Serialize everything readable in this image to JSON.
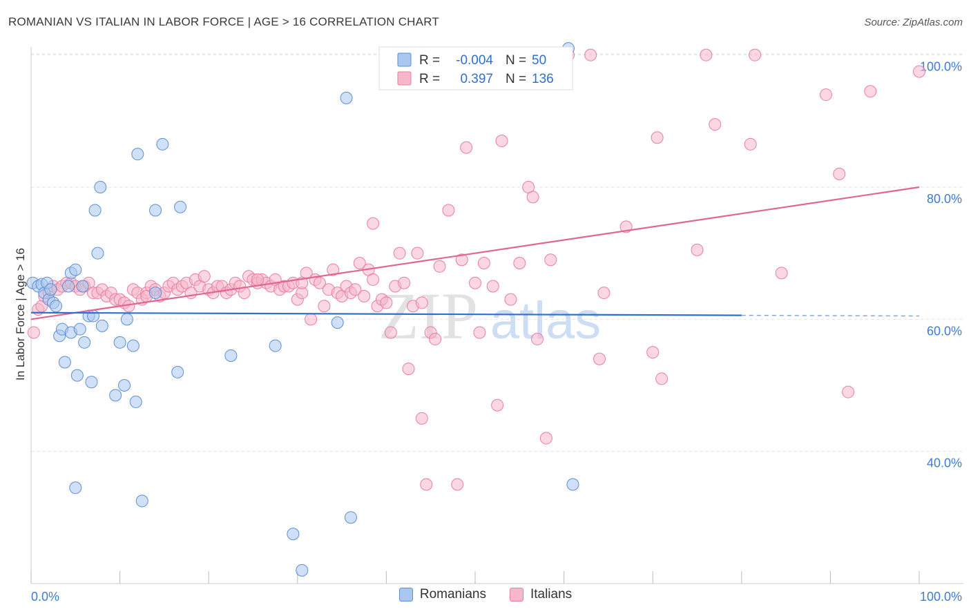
{
  "title": "ROMANIAN VS ITALIAN IN LABOR FORCE | AGE > 16 CORRELATION CHART",
  "source": "Source: ZipAtlas.com",
  "colors": {
    "romanians_fill": "#a9c7ef",
    "romanians_stroke": "#5b8fd6",
    "romanians_line": "#2e6fd0",
    "italians_fill": "#f6b7cb",
    "italians_stroke": "#e87fa1",
    "italians_line": "#e0668f",
    "tick_label": "#3f7bd1"
  },
  "legend_box": {
    "rows": [
      {
        "r_label": "R =",
        "r_value": "-0.004",
        "n_label": "N =",
        "n_value": "50"
      },
      {
        "r_label": "R =",
        "r_value": "0.397",
        "n_label": "N =",
        "n_value": "136"
      }
    ]
  },
  "chart_data": {
    "type": "scatter",
    "ylabel": "In Labor Force | Age > 16",
    "xlabel": "",
    "xlim": [
      0,
      100
    ],
    "ylim": [
      20,
      102
    ],
    "x_tick_labels": [
      "0.0%",
      "100.0%"
    ],
    "y_ticks": [
      40,
      60,
      80,
      100
    ],
    "y_tick_labels": [
      "40.0%",
      "60.0%",
      "80.0%",
      "100.0%"
    ],
    "grid": "horizontal dashed",
    "watermark": "ZIPatlas",
    "series": [
      {
        "name": "Romanians",
        "trend": {
          "x": [
            0,
            80
          ],
          "y": [
            61.0,
            60.6
          ],
          "dashed_to": 100
        },
        "points": [
          [
            0.2,
            65.5
          ],
          [
            0.8,
            65.0
          ],
          [
            1.2,
            65.3
          ],
          [
            1.5,
            64.0
          ],
          [
            1.8,
            65.5
          ],
          [
            2.0,
            63.0
          ],
          [
            2.2,
            64.5
          ],
          [
            2.5,
            62.5
          ],
          [
            2.8,
            62.0
          ],
          [
            3.2,
            57.5
          ],
          [
            3.5,
            58.5
          ],
          [
            3.8,
            53.5
          ],
          [
            4.2,
            65.0
          ],
          [
            4.5,
            67.0
          ],
          [
            4.5,
            58.0
          ],
          [
            5.0,
            67.5
          ],
          [
            5.2,
            51.5
          ],
          [
            5.5,
            58.5
          ],
          [
            5.8,
            65.0
          ],
          [
            6.0,
            56.5
          ],
          [
            6.5,
            60.5
          ],
          [
            6.8,
            50.5
          ],
          [
            7.0,
            60.5
          ],
          [
            7.2,
            76.5
          ],
          [
            7.5,
            70.0
          ],
          [
            7.8,
            80.0
          ],
          [
            8.0,
            59.0
          ],
          [
            9.5,
            48.5
          ],
          [
            10.0,
            56.5
          ],
          [
            10.5,
            50.0
          ],
          [
            10.8,
            60.0
          ],
          [
            11.5,
            56.0
          ],
          [
            11.8,
            47.5
          ],
          [
            12.0,
            85.0
          ],
          [
            12.5,
            32.5
          ],
          [
            14.0,
            64.0
          ],
          [
            14.0,
            76.5
          ],
          [
            14.8,
            86.5
          ],
          [
            16.5,
            52.0
          ],
          [
            16.8,
            77.0
          ],
          [
            22.5,
            54.5
          ],
          [
            27.5,
            56.0
          ],
          [
            29.5,
            27.5
          ],
          [
            35.5,
            93.5
          ],
          [
            5.0,
            34.5
          ],
          [
            36.0,
            30.0
          ],
          [
            60.5,
            101.0
          ],
          [
            30.5,
            22.0
          ],
          [
            34.5,
            59.5
          ],
          [
            61.0,
            35.0
          ]
        ]
      },
      {
        "name": "Italians",
        "trend": {
          "x": [
            0,
            100
          ],
          "y": [
            60.0,
            80.0
          ]
        },
        "points": [
          [
            0.3,
            58.0
          ],
          [
            0.8,
            61.5
          ],
          [
            1.2,
            62.0
          ],
          [
            1.5,
            63.5
          ],
          [
            2.0,
            64.0
          ],
          [
            2.5,
            65.0
          ],
          [
            3.0,
            64.5
          ],
          [
            3.5,
            65.0
          ],
          [
            4.0,
            65.5
          ],
          [
            4.5,
            65.5
          ],
          [
            5.0,
            65.0
          ],
          [
            5.5,
            64.5
          ],
          [
            6.0,
            65.0
          ],
          [
            6.5,
            65.5
          ],
          [
            7.0,
            64.0
          ],
          [
            7.5,
            64.0
          ],
          [
            8.0,
            64.5
          ],
          [
            8.5,
            63.5
          ],
          [
            9.0,
            64.0
          ],
          [
            9.5,
            63.0
          ],
          [
            10.0,
            63.0
          ],
          [
            10.5,
            62.5
          ],
          [
            11.0,
            62.0
          ],
          [
            11.5,
            64.5
          ],
          [
            12.0,
            64.0
          ],
          [
            12.5,
            63.0
          ],
          [
            13.0,
            64.0
          ],
          [
            13.5,
            65.0
          ],
          [
            14.0,
            64.5
          ],
          [
            14.5,
            63.5
          ],
          [
            15.0,
            64.0
          ],
          [
            15.5,
            65.0
          ],
          [
            16.0,
            65.5
          ],
          [
            16.5,
            64.5
          ],
          [
            17.0,
            65.0
          ],
          [
            17.5,
            65.5
          ],
          [
            18.0,
            64.0
          ],
          [
            18.5,
            66.0
          ],
          [
            19.0,
            65.0
          ],
          [
            19.5,
            66.5
          ],
          [
            20.0,
            64.5
          ],
          [
            20.5,
            64.0
          ],
          [
            21.0,
            65.0
          ],
          [
            21.5,
            65.0
          ],
          [
            22.0,
            64.0
          ],
          [
            22.5,
            64.5
          ],
          [
            23.0,
            65.5
          ],
          [
            23.5,
            65.0
          ],
          [
            24.0,
            64.0
          ],
          [
            24.5,
            66.5
          ],
          [
            25.0,
            66.0
          ],
          [
            25.5,
            65.5
          ],
          [
            26.0,
            66.0
          ],
          [
            26.5,
            65.5
          ],
          [
            27.0,
            65.0
          ],
          [
            27.5,
            66.0
          ],
          [
            28.0,
            64.5
          ],
          [
            28.5,
            65.0
          ],
          [
            29.0,
            65.0
          ],
          [
            29.5,
            65.5
          ],
          [
            30.0,
            63.0
          ],
          [
            30.5,
            64.0
          ],
          [
            31.0,
            67.0
          ],
          [
            31.5,
            60.0
          ],
          [
            32.0,
            66.0
          ],
          [
            32.5,
            65.5
          ],
          [
            33.0,
            62.0
          ],
          [
            33.5,
            64.5
          ],
          [
            34.0,
            67.5
          ],
          [
            34.5,
            64.0
          ],
          [
            35.0,
            63.5
          ],
          [
            35.5,
            65.0
          ],
          [
            36.0,
            64.0
          ],
          [
            36.5,
            64.5
          ],
          [
            37.0,
            68.5
          ],
          [
            37.5,
            63.5
          ],
          [
            38.0,
            67.5
          ],
          [
            38.5,
            66.0
          ],
          [
            39.0,
            62.0
          ],
          [
            39.5,
            63.0
          ],
          [
            40.0,
            62.5
          ],
          [
            40.5,
            58.0
          ],
          [
            41.0,
            65.0
          ],
          [
            41.5,
            70.0
          ],
          [
            42.0,
            65.5
          ],
          [
            42.5,
            52.5
          ],
          [
            43.0,
            62.0
          ],
          [
            43.5,
            70.0
          ],
          [
            44.0,
            45.0
          ],
          [
            44.5,
            35.0
          ],
          [
            45.0,
            58.0
          ],
          [
            45.5,
            57.0
          ],
          [
            46.0,
            68.0
          ],
          [
            47.0,
            76.5
          ],
          [
            48.0,
            35.0
          ],
          [
            48.5,
            69.0
          ],
          [
            49.0,
            86.0
          ],
          [
            50.0,
            65.5
          ],
          [
            50.5,
            58.0
          ],
          [
            51.0,
            68.5
          ],
          [
            52.0,
            65.0
          ],
          [
            52.5,
            47.0
          ],
          [
            53.0,
            87.0
          ],
          [
            54.0,
            63.0
          ],
          [
            55.0,
            68.5
          ],
          [
            56.0,
            80.0
          ],
          [
            56.5,
            78.5
          ],
          [
            57.0,
            57.0
          ],
          [
            58.0,
            42.0
          ],
          [
            58.5,
            69.0
          ],
          [
            63.0,
            100.0
          ],
          [
            64.0,
            54.0
          ],
          [
            64.5,
            64.0
          ],
          [
            67.0,
            74.0
          ],
          [
            70.0,
            55.0
          ],
          [
            70.5,
            87.5
          ],
          [
            71.0,
            51.0
          ],
          [
            75.0,
            70.5
          ],
          [
            76.0,
            100.0
          ],
          [
            77.0,
            89.5
          ],
          [
            81.0,
            86.5
          ],
          [
            81.5,
            100.0
          ],
          [
            84.5,
            67.0
          ],
          [
            89.5,
            94.0
          ],
          [
            91.0,
            82.0
          ],
          [
            92.0,
            49.0
          ],
          [
            94.5,
            94.5
          ],
          [
            100.0,
            97.5
          ],
          [
            56.0,
            100.0
          ],
          [
            51.0,
            100.0
          ],
          [
            60.5,
            100.0
          ],
          [
            38.5,
            74.5
          ],
          [
            44.0,
            62.5
          ],
          [
            25.5,
            66.0
          ],
          [
            30.5,
            65.5
          ],
          [
            13.0,
            63.5
          ]
        ]
      }
    ]
  }
}
